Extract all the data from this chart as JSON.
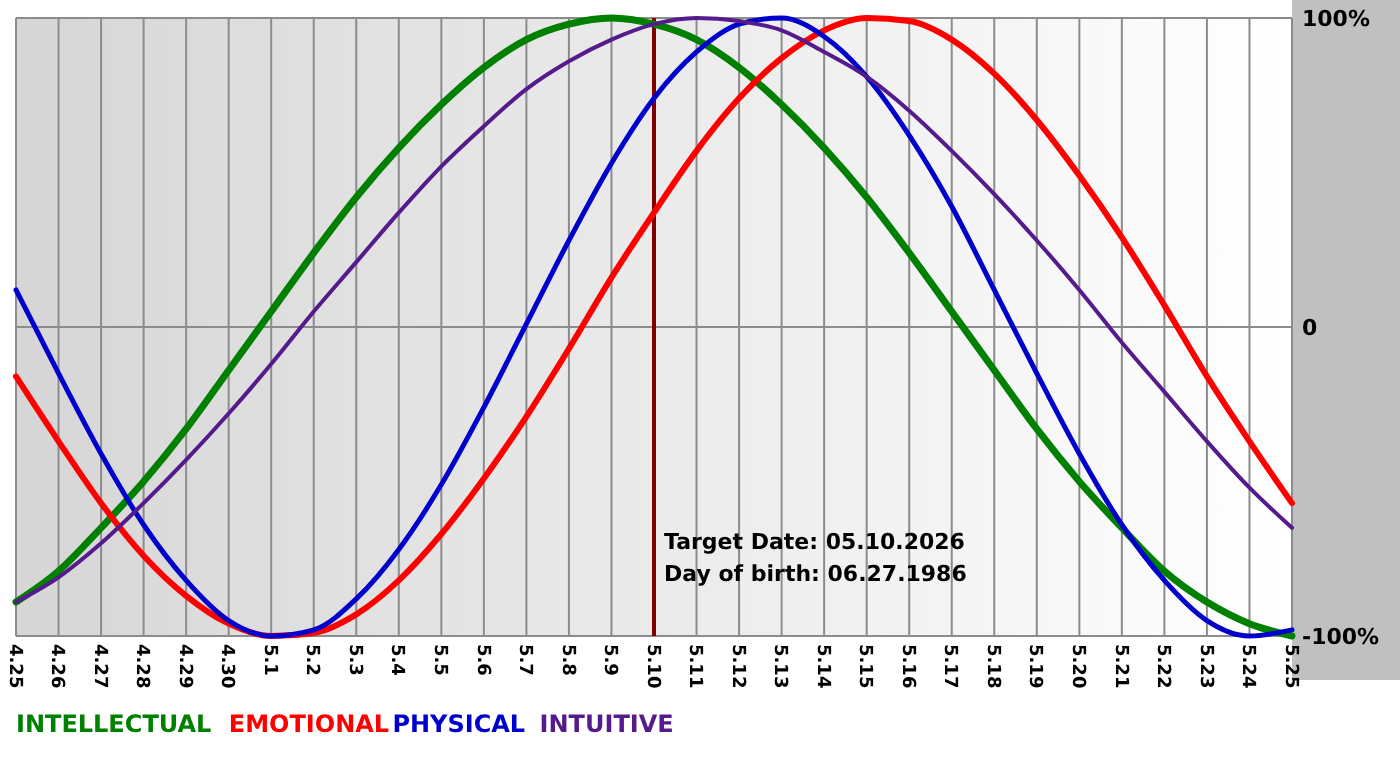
{
  "chart_data": {
    "type": "line",
    "categories": [
      "4.25",
      "4.26",
      "4.27",
      "4.28",
      "4.29",
      "4.30",
      "5.1",
      "5.2",
      "5.3",
      "5.4",
      "5.5",
      "5.6",
      "5.7",
      "5.8",
      "5.9",
      "5.10",
      "5.11",
      "5.12",
      "5.13",
      "5.14",
      "5.15",
      "5.16",
      "5.17",
      "5.18",
      "5.19",
      "5.20",
      "5.21",
      "5.22",
      "5.23",
      "5.24",
      "5.25"
    ],
    "series": [
      {
        "name": "INTELLECTUAL",
        "color": "#008000",
        "values": [
          -89,
          -79,
          -65,
          -50,
          -33,
          -14,
          5,
          24,
          42,
          58,
          72,
          84,
          93,
          98,
          100,
          98,
          93,
          84,
          72,
          58,
          42,
          24,
          5,
          -14,
          -33,
          -50,
          -65,
          -79,
          -89,
          -96,
          -100
        ]
      },
      {
        "name": "EMOTIONAL",
        "color": "#ff0000",
        "values": [
          -16,
          -37,
          -57,
          -74,
          -87,
          -96,
          -100,
          -99,
          -93,
          -82,
          -67,
          -49,
          -29,
          -7,
          16,
          37,
          57,
          74,
          87,
          96,
          100,
          99,
          93,
          82,
          67,
          49,
          29,
          7,
          -16,
          -37,
          -57
        ]
      },
      {
        "name": "PHYSICAL",
        "color": "#0000cc",
        "values": [
          12,
          -15,
          -41,
          -64,
          -82,
          -95,
          -100,
          -98,
          -88,
          -72,
          -51,
          -26,
          1,
          28,
          53,
          74,
          89,
          98,
          100,
          94,
          81,
          62,
          39,
          12,
          -15,
          -41,
          -64,
          -82,
          -95,
          -100,
          -98
        ]
      },
      {
        "name": "INTUITIVE",
        "color": "#551a8b",
        "values": [
          -89,
          -81,
          -70,
          -57,
          -43,
          -28,
          -12,
          5,
          21,
          37,
          52,
          65,
          77,
          86,
          93,
          98,
          100,
          99,
          96,
          89,
          81,
          70,
          57,
          43,
          28,
          12,
          -5,
          -21,
          -37,
          -52,
          -65
        ]
      }
    ],
    "ylim": [
      -100,
      100
    ],
    "yticks": [
      {
        "value": 100,
        "label": "100%"
      },
      0,
      {
        "value": -100,
        "label": "-100%"
      }
    ],
    "grid": true,
    "legend": "bottom left",
    "marker": "none",
    "line_style": "solid",
    "ref_lines": [
      {
        "axis": "x",
        "value": "5.10",
        "color": "#800000"
      }
    ],
    "annotations": [
      "Target Date: 05.10.2026",
      "Day of birth: 06.27.1986"
    ]
  }
}
